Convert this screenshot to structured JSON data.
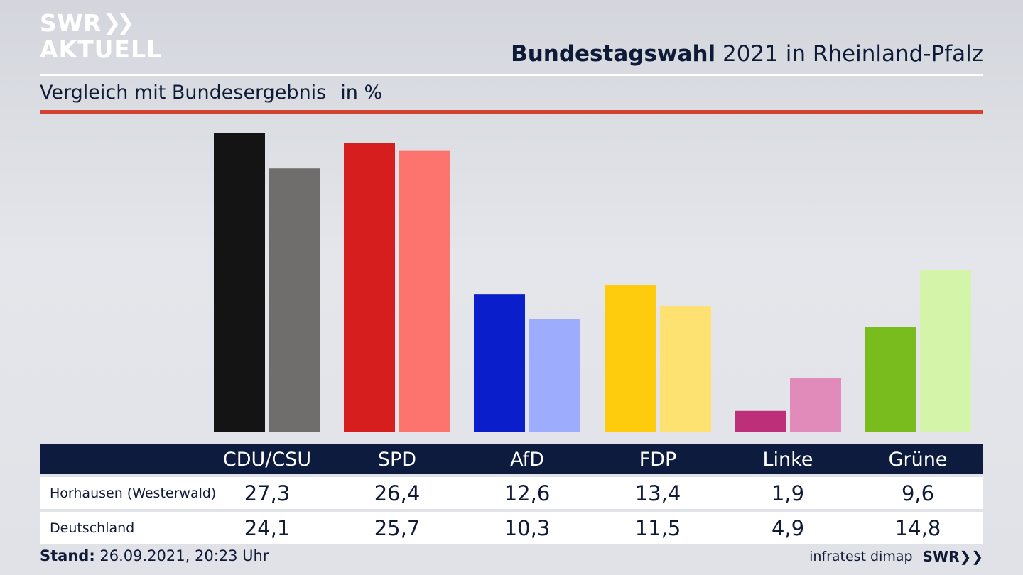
{
  "brand": {
    "logo_line1": "SWR",
    "logo_chevrons": "❯❯",
    "logo_line2": "AKTUELL"
  },
  "header": {
    "title_bold": "Bundestagswahl",
    "title_rest": " 2021 in Rheinland-Pfalz",
    "subtitle": "Vergleich mit Bundesergebnis",
    "unit": "in %"
  },
  "colors": {
    "text_dark": "#0e1a36",
    "accent_line": "#d24431",
    "table_header_bg": "#0d1b3e"
  },
  "chart_data": {
    "type": "bar",
    "title": "Bundestagswahl 2021 in Rheinland-Pfalz",
    "subtitle": "Vergleich mit Bundesergebnis",
    "ylabel": "in %",
    "categories": [
      "CDU/CSU",
      "SPD",
      "AfD",
      "FDP",
      "Linke",
      "Grüne"
    ],
    "series": [
      {
        "name": "Horhausen (Westerwald)",
        "values": [
          27.3,
          26.4,
          12.6,
          13.4,
          1.9,
          9.6
        ],
        "labels": [
          "27,3",
          "26,4",
          "12,6",
          "13,4",
          "1,9",
          "9,6"
        ],
        "colors": [
          "#141414",
          "#d61e1e",
          "#0a1fcb",
          "#ffcc0d",
          "#be2f79",
          "#79bc1e"
        ]
      },
      {
        "name": "Deutschland",
        "values": [
          24.1,
          25.7,
          10.3,
          11.5,
          4.9,
          14.8
        ],
        "labels": [
          "24,1",
          "25,7",
          "10,3",
          "11,5",
          "4,9",
          "14,8"
        ],
        "colors": [
          "#6f6e6d",
          "#fd746f",
          "#9eacfd",
          "#fde171",
          "#e08bb9",
          "#d4f5a9"
        ]
      }
    ],
    "ylim": [
      0,
      27.3
    ],
    "grid": false,
    "legend": "table below chart"
  },
  "footer": {
    "stand_label": "Stand:",
    "stand_value": " 26.09.2021, 20:23 Uhr",
    "source": "infratest dimap",
    "broadcaster": "SWR❯❯"
  }
}
